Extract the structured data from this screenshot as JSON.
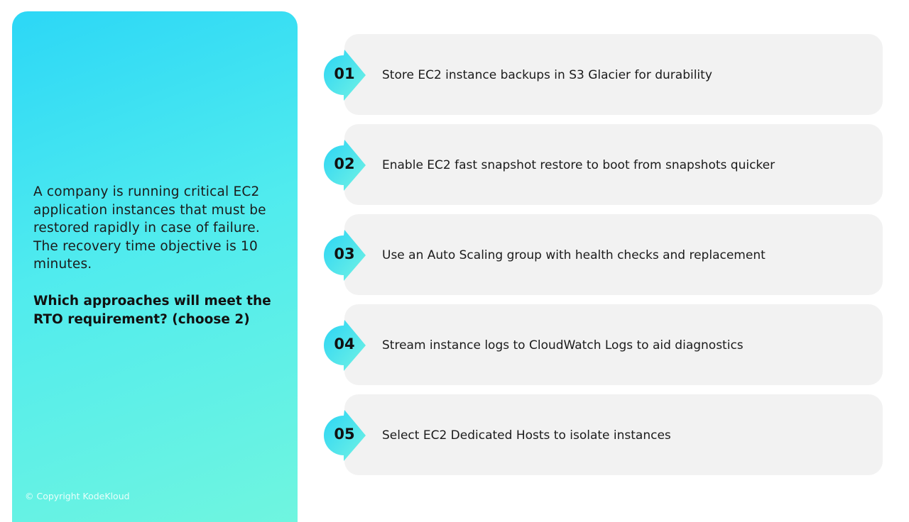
{
  "question": {
    "text": "A company is running critical EC2 application instances that must be restored rapidly in case of failure. The recovery time objective is 10 minutes.",
    "prompt": "Which approaches will meet the RTO requirement? (choose 2)"
  },
  "footer": {
    "copyright": "© Copyright KodeKloud"
  },
  "options": [
    {
      "number": "01",
      "text": "Store EC2 instance backups in S3 Glacier for durability"
    },
    {
      "number": "02",
      "text": "Enable EC2 fast snapshot restore to boot from snapshots quicker"
    },
    {
      "number": "03",
      "text": "Use an Auto Scaling group with health checks and replacement"
    },
    {
      "number": "04",
      "text": "Stream instance logs to CloudWatch Logs to aid diagnostics"
    },
    {
      "number": "05",
      "text": "Select EC2 Dedicated Hosts to isolate instances"
    }
  ],
  "colors": {
    "panel_start": "#2cd7f6",
    "panel_end": "#6ff5df",
    "card": "#f2f2f2"
  }
}
